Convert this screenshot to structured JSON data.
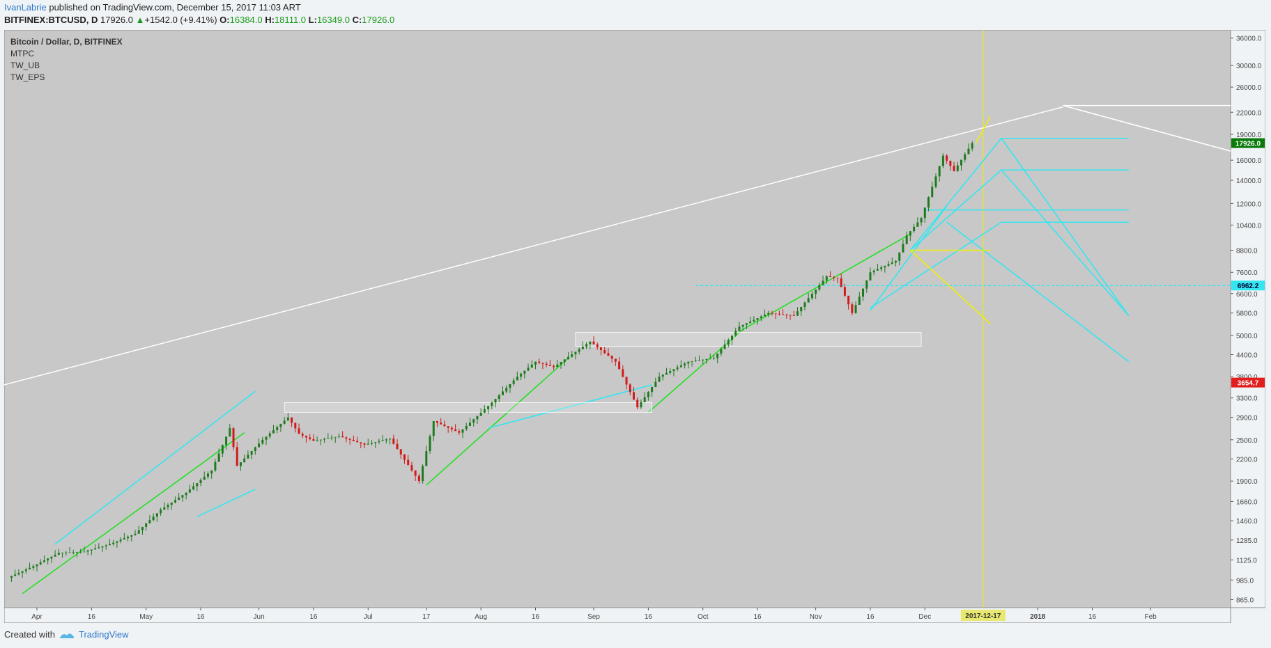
{
  "header": {
    "author": "IvanLabrie",
    "published": "published on TradingView.com, December 15, 2017 11:03 ART",
    "symbol": "BITFINEX:BTCUSD, D",
    "last": "17926.0",
    "change": "+1542.0 (+9.41%)",
    "o_label": "O:",
    "o": "16384.0",
    "h_label": "H:",
    "h": "18111.0",
    "l_label": "L:",
    "l": "16349.0",
    "c_label": "C:",
    "c": "17926.0"
  },
  "legend": {
    "title": "Bitcoin / Dollar, D, BITFINEX",
    "indicators": [
      "MTPC",
      "TW_UB",
      "TW_EPS"
    ]
  },
  "footer": {
    "created_with": "Created with",
    "brand": "TradingView"
  },
  "colors": {
    "bg": "#c8c8c8",
    "up": "#1f7a1f",
    "down": "#d11a1a",
    "cyan": "#33e6f0",
    "yellow": "#f0f000",
    "green": "#22e022",
    "white": "#ffffff",
    "last_badge": "#0a7a0a",
    "low_badge": "#e11d1d"
  },
  "chart_data": {
    "type": "candlestick",
    "title": "Bitcoin / Dollar, D, BITFINEX",
    "y_scale": "log",
    "ylim": [
      820,
      38000
    ],
    "xlim": [
      "2017-03-23",
      "2018-02-23"
    ],
    "y_ticks": [
      "36000.0",
      "30000.0",
      "26000.0",
      "22000.0",
      "19000.0",
      "16000.0",
      "14000.0",
      "12000.0",
      "10400.0",
      "8800.0",
      "7600.0",
      "6600.0",
      "5800.0",
      "5000.0",
      "4400.0",
      "3800.0",
      "3300.0",
      "2900.0",
      "2500.0",
      "2200.0",
      "1900.0",
      "1660.0",
      "1460.0",
      "1285.0",
      "1125.0",
      "985.0",
      "865.0"
    ],
    "x_ticks": [
      {
        "label": "Apr",
        "date": "2017-04-01"
      },
      {
        "label": "16",
        "date": "2017-04-16"
      },
      {
        "label": "May",
        "date": "2017-05-01"
      },
      {
        "label": "16",
        "date": "2017-05-16"
      },
      {
        "label": "Jun",
        "date": "2017-06-01"
      },
      {
        "label": "16",
        "date": "2017-06-16"
      },
      {
        "label": "Jul",
        "date": "2017-07-01"
      },
      {
        "label": "17",
        "date": "2017-07-17"
      },
      {
        "label": "Aug",
        "date": "2017-08-01"
      },
      {
        "label": "16",
        "date": "2017-08-16"
      },
      {
        "label": "Sep",
        "date": "2017-09-01"
      },
      {
        "label": "16",
        "date": "2017-09-16"
      },
      {
        "label": "Oct",
        "date": "2017-10-01"
      },
      {
        "label": "16",
        "date": "2017-10-16"
      },
      {
        "label": "Nov",
        "date": "2017-11-01"
      },
      {
        "label": "16",
        "date": "2017-11-16"
      },
      {
        "label": "Dec",
        "date": "2017-12-01"
      },
      {
        "label": "2018",
        "date": "2018-01-01"
      },
      {
        "label": "16",
        "date": "2018-01-16"
      },
      {
        "label": "Feb",
        "date": "2018-02-01"
      }
    ],
    "cursor_date_label": "2017-12-17",
    "cursor_date": "2017-12-17",
    "price_badges": [
      {
        "label": "17926.0",
        "value": 17926,
        "color": "#0a7a0a"
      },
      {
        "label": "6962.2",
        "value": 6962.2,
        "color": "#33e6f0"
      },
      {
        "label": "3654.7",
        "value": 3654.7,
        "color": "#e11d1d"
      }
    ],
    "daily_closes": [
      [
        "2017-03-25",
        1000
      ],
      [
        "2017-04-01",
        1080
      ],
      [
        "2017-04-08",
        1180
      ],
      [
        "2017-04-15",
        1190
      ],
      [
        "2017-04-22",
        1250
      ],
      [
        "2017-04-29",
        1340
      ],
      [
        "2017-05-06",
        1570
      ],
      [
        "2017-05-13",
        1760
      ],
      [
        "2017-05-20",
        2040
      ],
      [
        "2017-05-25",
        2700
      ],
      [
        "2017-05-27",
        2100
      ],
      [
        "2017-06-03",
        2500
      ],
      [
        "2017-06-10",
        2900
      ],
      [
        "2017-06-13",
        2600
      ],
      [
        "2017-06-17",
        2480
      ],
      [
        "2017-06-24",
        2560
      ],
      [
        "2017-07-01",
        2420
      ],
      [
        "2017-07-08",
        2520
      ],
      [
        "2017-07-16",
        1900
      ],
      [
        "2017-07-20",
        2830
      ],
      [
        "2017-07-27",
        2620
      ],
      [
        "2017-08-05",
        3200
      ],
      [
        "2017-08-12",
        3800
      ],
      [
        "2017-08-17",
        4200
      ],
      [
        "2017-08-22",
        4050
      ],
      [
        "2017-09-01",
        4800
      ],
      [
        "2017-09-08",
        4200
      ],
      [
        "2017-09-14",
        3100
      ],
      [
        "2017-09-20",
        3800
      ],
      [
        "2017-09-28",
        4200
      ],
      [
        "2017-10-05",
        4300
      ],
      [
        "2017-10-12",
        5300
      ],
      [
        "2017-10-20",
        5800
      ],
      [
        "2017-10-27",
        5700
      ],
      [
        "2017-11-05",
        7400
      ],
      [
        "2017-11-08",
        7300
      ],
      [
        "2017-11-12",
        5800
      ],
      [
        "2017-11-17",
        7600
      ],
      [
        "2017-11-24",
        8200
      ],
      [
        "2017-11-27",
        9700
      ],
      [
        "2017-12-01",
        10900
      ],
      [
        "2017-12-07",
        16500
      ],
      [
        "2017-12-10",
        14900
      ],
      [
        "2017-12-15",
        17926
      ]
    ],
    "series": [
      {
        "name": "primary long-term trendline (white)",
        "points": [
          [
            "2017-03-23",
            3600
          ],
          [
            "2018-01-08",
            22800
          ]
        ],
        "color": "#ffffff"
      },
      {
        "name": "projection yellow",
        "points": [
          [
            "2017-12-15",
            17926
          ],
          [
            "2017-12-19",
            21400
          ]
        ],
        "color": "#f0f000"
      },
      {
        "name": "horizontal cyan dashed",
        "points": [
          [
            "2017-09-29",
            6962.2
          ],
          [
            "2018-02-23",
            6962.2
          ]
        ],
        "color": "#33e6f0"
      },
      {
        "name": "white upper target line",
        "points": [
          [
            "2018-01-08",
            23000
          ],
          [
            "2018-02-23",
            23000
          ]
        ],
        "color": "#ffffff"
      }
    ]
  }
}
